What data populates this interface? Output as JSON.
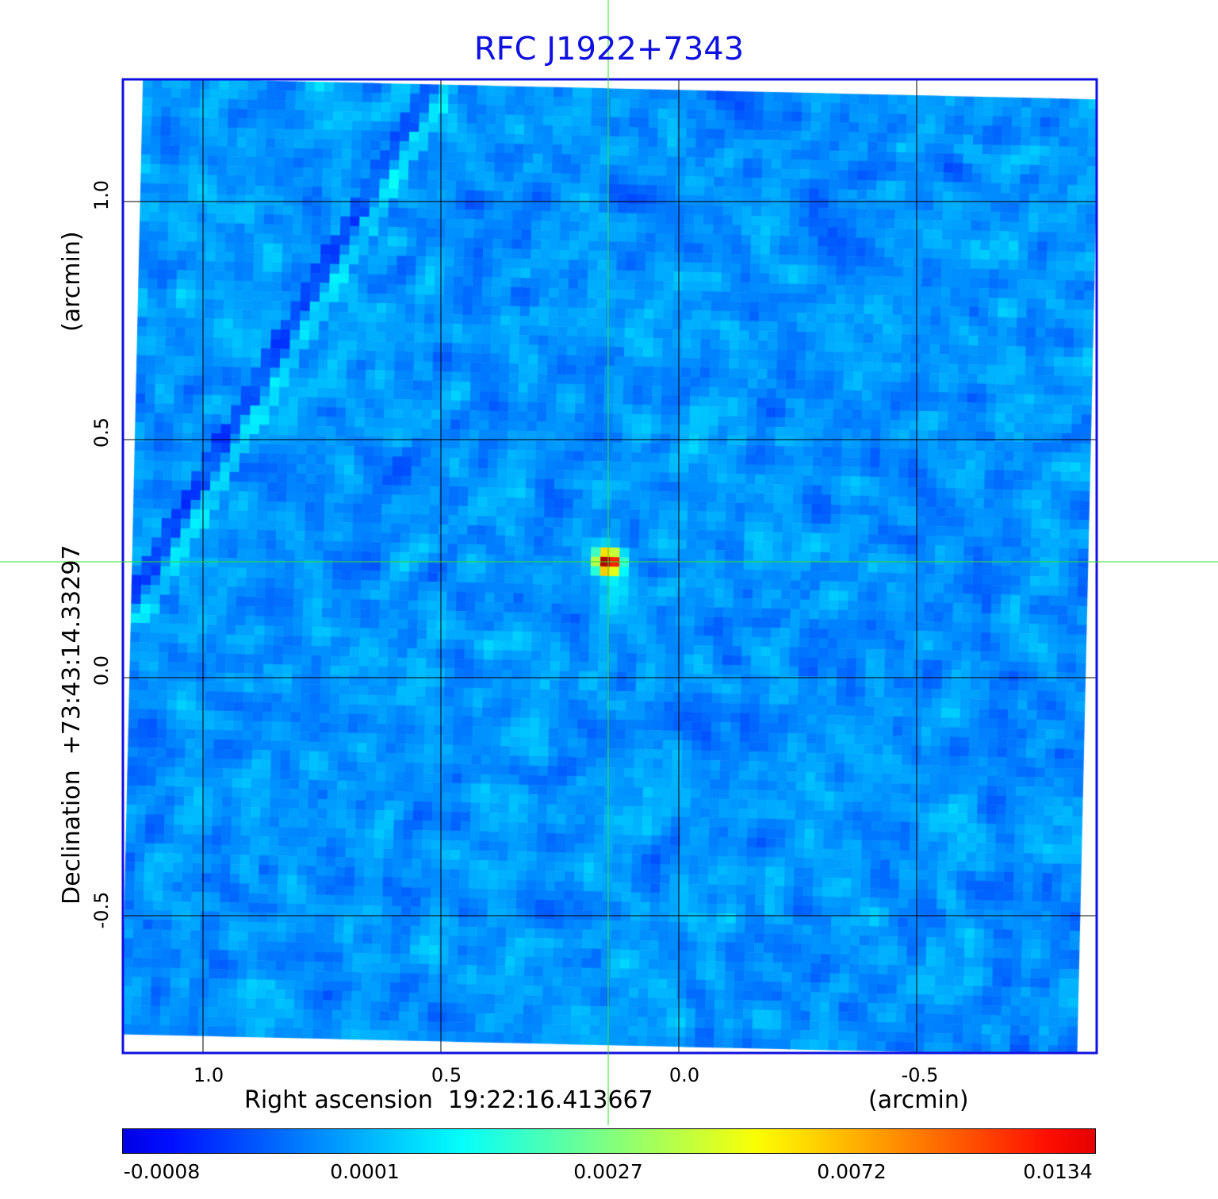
{
  "chart_data": {
    "type": "heatmap",
    "title": "RFC J1922+7343",
    "xlabel": "Right ascension  19:22:16.413667",
    "xunit": "(arcmin)",
    "ylabel": "Declination  +73:43:14.33297",
    "yunit": "(arcmin)",
    "xticks": [
      "1.0",
      "0.5",
      "0.0",
      "-0.5"
    ],
    "yticks": [
      "1.0",
      "0.5",
      "0.0",
      "-0.5"
    ],
    "xlim": [
      1.17,
      -0.88
    ],
    "ylim": [
      -0.79,
      1.26
    ],
    "grid": true,
    "colormap": "jet",
    "colorbar": {
      "ticks": [
        "-0.0008",
        "0.0001",
        "0.0027",
        "0.0072",
        "0.0134"
      ],
      "range": [
        -0.0008,
        0.0134
      ]
    },
    "source_peak": {
      "x": 0.15,
      "y": 0.24,
      "value": 0.0134
    },
    "crosshair": {
      "x": 0.15,
      "y": 0.24
    }
  },
  "colors": {
    "frame": "#1010e0",
    "crosshair": "#33dd33",
    "grid": "#000000"
  }
}
